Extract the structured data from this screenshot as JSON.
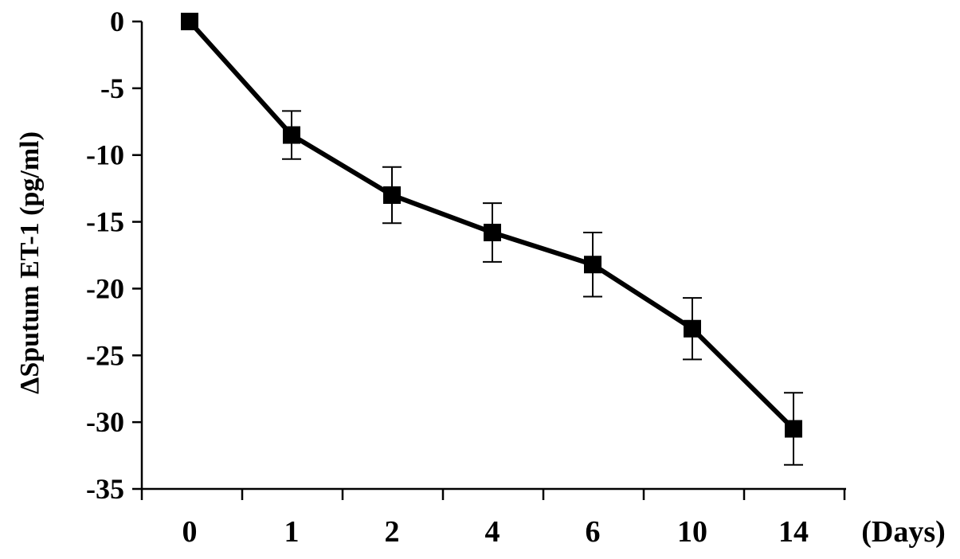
{
  "chart_data": {
    "type": "line",
    "title": "",
    "xlabel": "(Days)",
    "ylabel": "ΔSputum ET-1 (pg/ml)",
    "categories": [
      "0",
      "1",
      "2",
      "4",
      "6",
      "10",
      "14"
    ],
    "ylim": [
      -35,
      0
    ],
    "yticks": [
      0,
      -5,
      -10,
      -15,
      -20,
      -25,
      -30,
      -35
    ],
    "grid": false,
    "series": [
      {
        "marker": "square",
        "color": "#000000",
        "values": [
          0,
          -8.5,
          -13.0,
          -15.8,
          -18.2,
          -23.0,
          -30.5
        ],
        "error": [
          0,
          1.8,
          2.1,
          2.2,
          2.4,
          2.3,
          2.7
        ]
      }
    ]
  }
}
